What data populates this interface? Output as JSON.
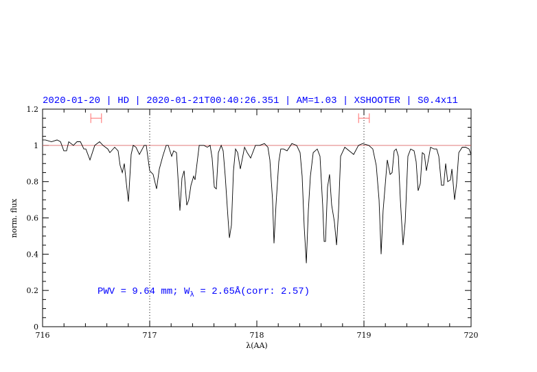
{
  "chart_data": {
    "type": "line",
    "title": "2020-01-20 | HD | 2020-01-21T00:40:26.351 | AM=1.03 | XSHOOTER | S0.4x11",
    "xlabel": "λ(AA)",
    "ylabel": "norm. flux",
    "xlim": [
      716,
      720
    ],
    "ylim": [
      0,
      1.2
    ],
    "xticks": [
      "716",
      "717",
      "718",
      "719",
      "720"
    ],
    "yticks": [
      "0",
      "0.2",
      "0.4",
      "0.6",
      "0.8",
      "1",
      "1.2"
    ],
    "grid": false,
    "continuum_level": 1.0,
    "vertical_markers": [
      717,
      719
    ],
    "range_markers": [
      {
        "x_from": 716.45,
        "x_to": 716.55,
        "y": 1.15
      },
      {
        "x_from": 718.95,
        "x_to": 719.05,
        "y": 1.15
      }
    ],
    "annotation": {
      "prefix": "PWV = 9.64 mm; W",
      "subscript": "λ",
      "suffix": " = 2.65Å(corr: 2.57)"
    },
    "colors": {
      "spectrum": "#000000",
      "continuum": "#e07a7a",
      "markers": "#ff6b6b",
      "text": "#0000ff"
    },
    "series": [
      {
        "x": [
          716.0,
          716.026,
          716.083,
          716.135,
          716.167,
          716.199,
          716.224,
          716.244,
          716.288,
          716.321,
          716.353,
          716.385,
          716.404,
          716.442,
          716.487,
          716.532,
          716.564,
          716.609,
          716.628,
          716.673,
          716.705,
          716.724,
          716.744,
          716.763,
          716.782,
          716.801,
          716.827,
          716.846,
          716.872,
          716.904,
          716.949,
          716.968,
          717.0,
          717.032,
          717.064,
          717.09,
          717.122,
          717.154,
          717.173,
          717.205,
          717.224,
          717.25,
          717.269,
          717.282,
          717.301,
          717.321,
          717.346,
          717.365,
          717.385,
          717.41,
          717.423,
          717.462,
          717.506,
          717.538,
          717.564,
          717.583,
          717.603,
          717.622,
          717.641,
          717.667,
          717.686,
          717.705,
          717.731,
          717.744,
          717.763,
          717.782,
          717.801,
          717.821,
          717.846,
          717.885,
          717.91,
          717.942,
          717.987,
          718.026,
          718.071,
          718.103,
          718.122,
          718.147,
          718.16,
          718.179,
          718.205,
          718.224,
          718.25,
          718.282,
          718.327,
          718.372,
          718.404,
          718.423,
          718.442,
          718.462,
          718.481,
          718.5,
          718.526,
          718.564,
          718.59,
          718.615,
          718.628,
          718.641,
          718.66,
          718.679,
          718.699,
          718.724,
          718.744,
          718.763,
          718.782,
          718.821,
          718.904,
          718.949,
          718.987,
          719.045,
          719.083,
          719.115,
          719.141,
          719.16,
          719.179,
          719.205,
          719.218,
          719.244,
          719.263,
          719.282,
          719.301,
          719.321,
          719.34,
          719.365,
          719.385,
          719.41,
          719.436,
          719.468,
          719.487,
          719.506,
          719.526,
          719.545,
          719.564,
          719.583,
          719.622,
          719.654,
          719.679,
          719.699,
          719.724,
          719.744,
          719.763,
          719.782,
          719.808,
          719.821,
          719.846,
          719.865,
          719.885,
          719.917,
          719.949,
          719.981,
          720.0
        ],
        "y": [
          1.03,
          1.03,
          1.02,
          1.03,
          1.02,
          0.97,
          0.97,
          1.02,
          1.0,
          1.02,
          1.02,
          0.98,
          0.98,
          0.92,
          1.0,
          1.02,
          1.0,
          0.98,
          0.96,
          0.99,
          0.97,
          0.89,
          0.85,
          0.9,
          0.79,
          0.69,
          0.95,
          1.0,
          0.99,
          0.95,
          1.0,
          1.0,
          0.86,
          0.84,
          0.76,
          0.87,
          0.94,
          1.0,
          1.0,
          0.94,
          0.97,
          0.96,
          0.77,
          0.64,
          0.82,
          0.86,
          0.67,
          0.7,
          0.78,
          0.83,
          0.81,
          1.0,
          1.0,
          0.99,
          1.0,
          0.93,
          0.77,
          0.76,
          0.96,
          1.0,
          0.97,
          0.83,
          0.6,
          0.49,
          0.56,
          0.86,
          0.98,
          0.96,
          0.87,
          0.99,
          0.96,
          0.93,
          1.0,
          1.0,
          1.01,
          0.99,
          0.92,
          0.7,
          0.46,
          0.67,
          0.91,
          0.98,
          0.98,
          0.97,
          1.01,
          1.0,
          0.96,
          0.83,
          0.55,
          0.35,
          0.64,
          0.83,
          0.96,
          0.98,
          0.94,
          0.67,
          0.47,
          0.47,
          0.77,
          0.84,
          0.67,
          0.58,
          0.45,
          0.64,
          0.94,
          0.99,
          0.95,
          1.0,
          1.01,
          1.0,
          0.98,
          0.89,
          0.7,
          0.4,
          0.64,
          0.83,
          0.92,
          0.84,
          0.85,
          0.97,
          0.98,
          0.94,
          0.7,
          0.45,
          0.58,
          0.94,
          0.98,
          0.97,
          0.91,
          0.75,
          0.79,
          0.96,
          0.95,
          0.86,
          0.99,
          0.98,
          0.98,
          0.94,
          0.78,
          0.78,
          0.9,
          0.8,
          0.81,
          0.87,
          0.7,
          0.79,
          0.96,
          0.99,
          0.99,
          0.98,
          0.95
        ]
      }
    ]
  }
}
